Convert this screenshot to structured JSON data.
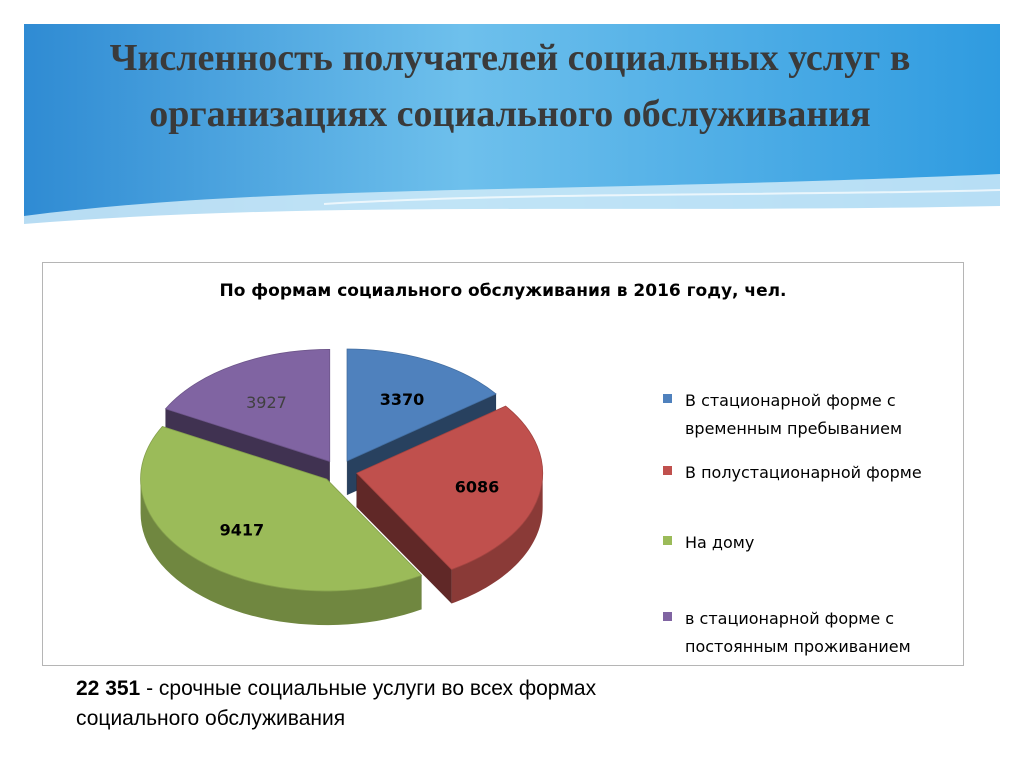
{
  "slide": {
    "title": "Численность получателей социальных услуг в организациях социального обслуживания",
    "footer_number": "22 351",
    "footer_text": " - срочные социальные услуги во всех формах социального обслуживания"
  },
  "chart_data": {
    "type": "pie",
    "title": "По формам социального обслуживания в 2016 году, чел.",
    "legend_position": "right",
    "categories": [
      "В стационарной форме с временным пребыванием",
      "В полустационарной форме",
      "На дому",
      "в стационарной форме с постоянным проживанием"
    ],
    "values": [
      3370,
      6086,
      9417,
      3927
    ],
    "colors": [
      "#4F81BD",
      "#C0504D",
      "#9BBB59",
      "#8064A2"
    ],
    "data_label_colors": [
      "#000000",
      "#000000",
      "#000000",
      "#404040"
    ],
    "data_label_bold": [
      true,
      true,
      true,
      false
    ]
  }
}
